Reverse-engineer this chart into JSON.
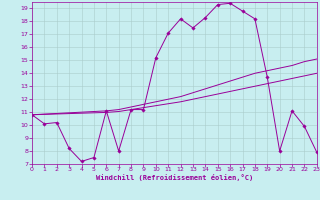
{
  "xlabel": "Windchill (Refroidissement éolien,°C)",
  "xlim": [
    0,
    23
  ],
  "ylim": [
    7,
    19.5
  ],
  "yticks": [
    7,
    8,
    9,
    10,
    11,
    12,
    13,
    14,
    15,
    16,
    17,
    18,
    19
  ],
  "xticks": [
    0,
    1,
    2,
    3,
    4,
    5,
    6,
    7,
    8,
    9,
    10,
    11,
    12,
    13,
    14,
    15,
    16,
    17,
    18,
    19,
    20,
    21,
    22,
    23
  ],
  "bg_color": "#c8eef0",
  "line_color": "#990099",
  "grid_color": "#aacccc",
  "line1_x": [
    0,
    1,
    2,
    3,
    4,
    5,
    6,
    7,
    8,
    9,
    10,
    11,
    12,
    13,
    14,
    15,
    16,
    17,
    18,
    19,
    20,
    21,
    22,
    23
  ],
  "line1_y": [
    10.8,
    10.1,
    10.2,
    8.2,
    7.2,
    7.5,
    11.1,
    8.0,
    11.2,
    11.2,
    15.2,
    17.1,
    18.2,
    17.5,
    18.3,
    19.3,
    19.4,
    18.8,
    18.2,
    13.7,
    8.0,
    11.1,
    9.9,
    7.9
  ],
  "line2_x": [
    0,
    1,
    2,
    3,
    4,
    5,
    6,
    7,
    8,
    9,
    10,
    11,
    12,
    13,
    14,
    15,
    16,
    17,
    18,
    19,
    20,
    21,
    22,
    23
  ],
  "line2_y": [
    10.8,
    10.85,
    10.9,
    10.95,
    11.0,
    11.05,
    11.1,
    11.2,
    11.4,
    11.6,
    11.8,
    12.0,
    12.2,
    12.5,
    12.8,
    13.1,
    13.4,
    13.7,
    14.0,
    14.2,
    14.4,
    14.6,
    14.9,
    15.1
  ],
  "line3_x": [
    0,
    1,
    2,
    3,
    4,
    5,
    6,
    7,
    8,
    9,
    10,
    11,
    12,
    13,
    14,
    15,
    16,
    17,
    18,
    19,
    20,
    21,
    22,
    23
  ],
  "line3_y": [
    10.8,
    10.83,
    10.86,
    10.89,
    10.92,
    10.95,
    10.98,
    11.05,
    11.2,
    11.35,
    11.5,
    11.65,
    11.8,
    12.0,
    12.2,
    12.4,
    12.6,
    12.8,
    13.0,
    13.2,
    13.4,
    13.6,
    13.8,
    14.0
  ]
}
